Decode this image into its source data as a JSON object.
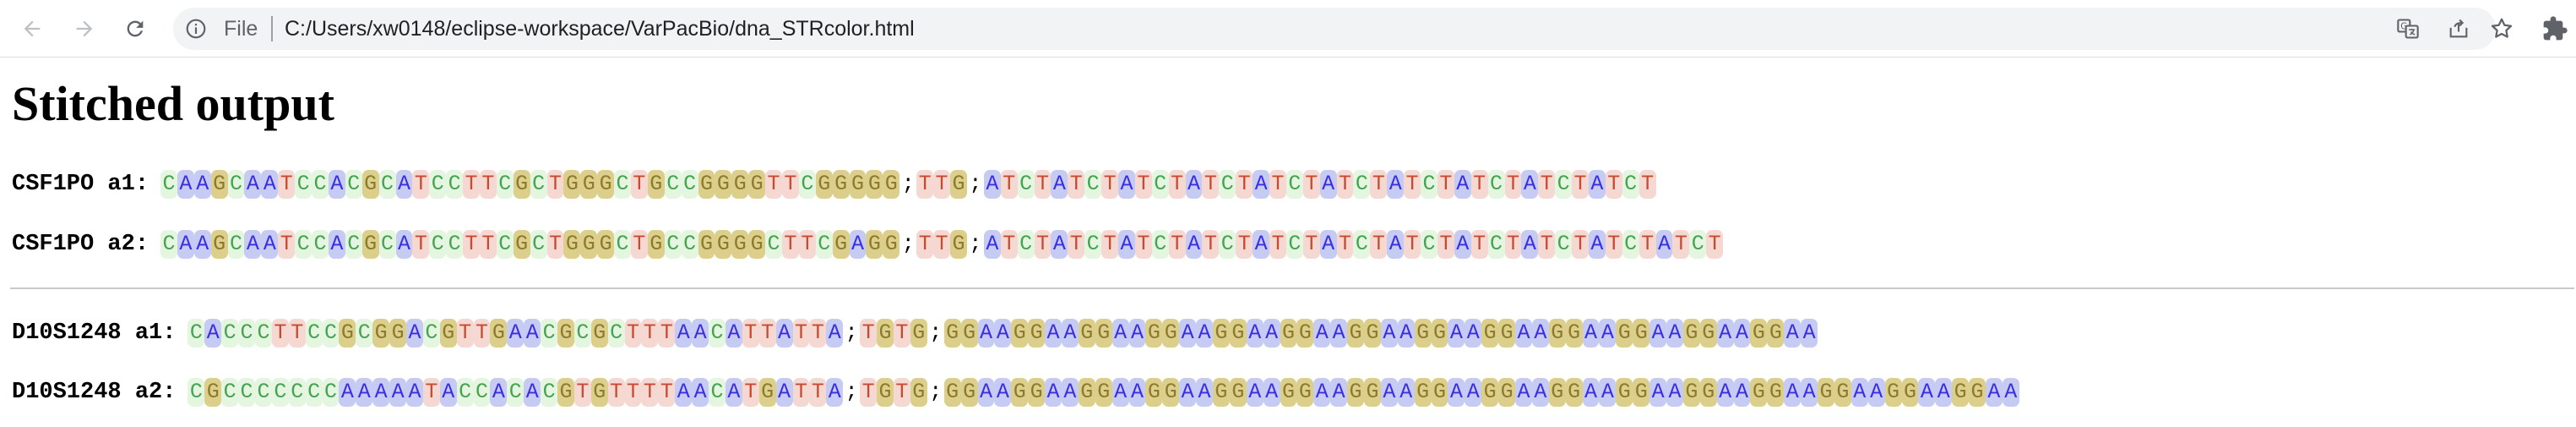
{
  "browser": {
    "scheme_label": "File",
    "url": "C:/Users/xw0148/eclipse-workspace/VarPacBio/dna_STRcolor.html",
    "icons": [
      "back-icon",
      "forward-icon",
      "reload-icon",
      "info-icon",
      "translate-icon",
      "share-icon",
      "bookmark-star-icon",
      "extensions-puzzle-icon"
    ]
  },
  "page": {
    "title": "Stitched output",
    "rows": [
      {
        "label": "CSF1PO a1:",
        "sequence": "CAAGCAATCCACGCATCCTTCGCTGGGCTGCCGGGGTTCGGGGG;TTG;ATCTATCTATCTATCTATCTATCTATCTATCTATCTATCT"
      },
      {
        "label": "CSF1PO a2:",
        "sequence": "CAAGCAATCCACGCATCCTTCGCTGGGCTGCCGGGGCTTCGAGG;TTG;ATCTATCTATCTATCTATCTATCTATCTATCTATCTATCTATCT"
      },
      {
        "label": "D10S1248 a1:",
        "sequence": "CACCCTTCCGCGGACGTTGAACGCGCTTTAACATTATTA;TGTG;GGAAGGAAGGAAGGAAGGAAGGAAGGAAGGAAGGAAGGAAGGAAGGAAGGAA"
      },
      {
        "label": "D10S1248 a2:",
        "sequence": "CGCCCCCCCAAAAATACCACACGTGTTTTAACATGATTA;TGTG;GGAAGGAAGGAAGGAAGGAAGGAAGGAAGGAAGGAAGGAAGGAAGGAAGGAAGGAAGGAAGGAA"
      }
    ]
  },
  "colors": {
    "A_bg": "#c6cbf3",
    "A_fg": "#3b2ee0",
    "C_bg": "#e4f6df",
    "C_fg": "#46a352",
    "G_bg": "#dccf8c",
    "G_fg": "#8d7a2c",
    "T_bg": "#f6d8d2",
    "T_fg": "#c84a30"
  }
}
